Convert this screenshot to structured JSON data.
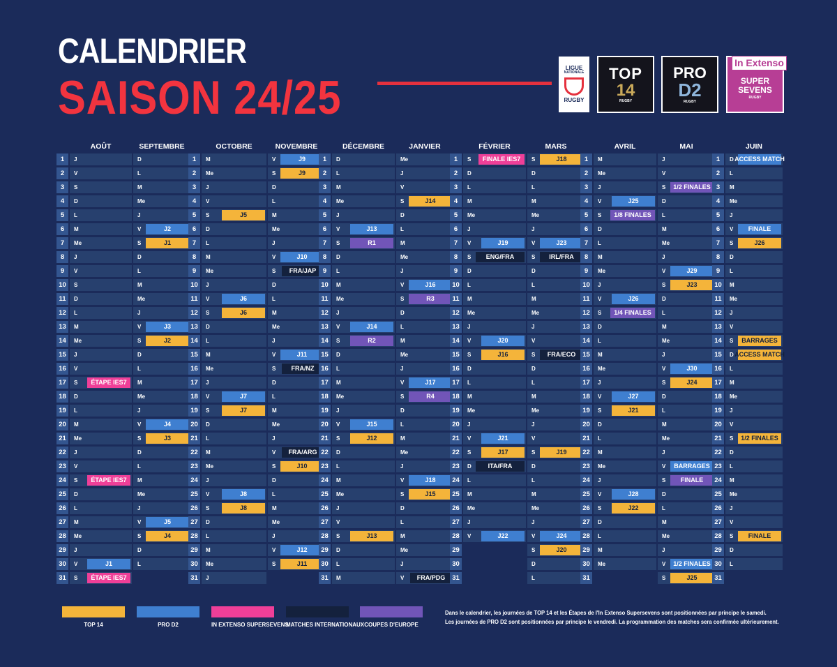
{
  "header": {
    "title_line1": "CALENDRIER",
    "title_line2": "SAISON 24/25"
  },
  "logos": {
    "lnr": {
      "line1": "LIGUE",
      "line2": "NATIONALE",
      "line3": "RUGBY"
    },
    "top14": {
      "line1": "TOP",
      "line2": "14",
      "line3": "RUGBY"
    },
    "prod2": {
      "line1": "PRO",
      "line2": "D2",
      "line3": "RUGBY"
    },
    "supersevens": {
      "line1": "In Extenso",
      "line2": "SUPER SEVENS",
      "line3": "RUGBY"
    }
  },
  "colors": {
    "background": "#1b2b5a",
    "title_red": "#f2343f",
    "top14": "#f4b43a",
    "prod2": "#3f7fd0",
    "supersevens": "#ef3f98",
    "international": "#14213d",
    "europe": "#7155b8",
    "cell": "#27406e",
    "daynum": "#33558f"
  },
  "blocks": [
    {
      "months": [
        {
          "name": "AOÛT",
          "days": [
            "J",
            "V",
            "S",
            "D",
            "L",
            "M",
            "Me",
            "J",
            "V",
            "S",
            "D",
            "L",
            "M",
            "Me",
            "J",
            "V",
            "S",
            "D",
            "L",
            "M",
            "Me",
            "J",
            "V",
            "S",
            "D",
            "L",
            "M",
            "Me",
            "J",
            "V",
            "S"
          ],
          "events": {
            "17": {
              "t": "ss",
              "l": "ÉTAPE IES7"
            },
            "24": {
              "t": "ss",
              "l": "ÉTAPE IES7"
            },
            "30": {
              "t": "prod2",
              "l": "J1"
            },
            "31": {
              "t": "ss",
              "l": "ÉTAPE IES7"
            }
          }
        },
        {
          "name": "SEPTEMBRE",
          "days": [
            "D",
            "L",
            "M",
            "Me",
            "J",
            "V",
            "S",
            "D",
            "L",
            "M",
            "Me",
            "J",
            "V",
            "S",
            "D",
            "L",
            "M",
            "Me",
            "J",
            "V",
            "S",
            "D",
            "L",
            "M",
            "Me",
            "J",
            "V",
            "S",
            "D",
            "L"
          ],
          "events": {
            "6": {
              "t": "prod2",
              "l": "J2"
            },
            "7": {
              "t": "top14",
              "l": "J1"
            },
            "13": {
              "t": "prod2",
              "l": "J3"
            },
            "14": {
              "t": "top14",
              "l": "J2"
            },
            "20": {
              "t": "prod2",
              "l": "J4"
            },
            "21": {
              "t": "top14",
              "l": "J3"
            },
            "27": {
              "t": "prod2",
              "l": "J5"
            },
            "28": {
              "t": "top14",
              "l": "J4"
            }
          }
        }
      ]
    },
    {
      "months": [
        {
          "name": "OCTOBRE",
          "days": [
            "M",
            "Me",
            "J",
            "V",
            "S",
            "D",
            "L",
            "M",
            "Me",
            "J",
            "V",
            "S",
            "D",
            "L",
            "M",
            "Me",
            "J",
            "V",
            "S",
            "D",
            "L",
            "M",
            "Me",
            "J",
            "V",
            "S",
            "D",
            "L",
            "M",
            "Me",
            "J"
          ],
          "events": {
            "5": {
              "t": "top14",
              "l": "J5"
            },
            "11": {
              "t": "prod2",
              "l": "J6"
            },
            "12": {
              "t": "top14",
              "l": "J6"
            },
            "18": {
              "t": "prod2",
              "l": "J7"
            },
            "19": {
              "t": "top14",
              "l": "J7"
            },
            "25": {
              "t": "prod2",
              "l": "J8"
            },
            "26": {
              "t": "top14",
              "l": "J8"
            }
          }
        },
        {
          "name": "NOVEMBRE",
          "days": [
            "V",
            "S",
            "D",
            "L",
            "M",
            "Me",
            "J",
            "V",
            "S",
            "D",
            "L",
            "M",
            "Me",
            "J",
            "V",
            "S",
            "D",
            "L",
            "M",
            "Me",
            "J",
            "V",
            "S",
            "D",
            "L",
            "M",
            "Me",
            "J",
            "V",
            "S"
          ],
          "events": {
            "1": {
              "t": "prod2",
              "l": "J9"
            },
            "2": {
              "t": "top14",
              "l": "J9"
            },
            "8": {
              "t": "prod2",
              "l": "J10"
            },
            "9": {
              "t": "intl",
              "l": "FRA/JAP"
            },
            "15": {
              "t": "prod2",
              "l": "J11"
            },
            "16": {
              "t": "intl",
              "l": "FRA/NZ"
            },
            "22": {
              "t": "intl",
              "l": "FRA/ARG"
            },
            "23": {
              "t": "top14",
              "l": "J10"
            },
            "29": {
              "t": "prod2",
              "l": "J12"
            },
            "30": {
              "t": "top14",
              "l": "J11"
            }
          }
        }
      ]
    },
    {
      "months": [
        {
          "name": "DÉCEMBRE",
          "days": [
            "D",
            "L",
            "M",
            "Me",
            "J",
            "V",
            "S",
            "D",
            "L",
            "M",
            "Me",
            "J",
            "V",
            "S",
            "D",
            "L",
            "M",
            "Me",
            "J",
            "V",
            "S",
            "D",
            "L",
            "M",
            "Me",
            "J",
            "V",
            "S",
            "D",
            "L",
            "M"
          ],
          "events": {
            "6": {
              "t": "prod2",
              "l": "J13"
            },
            "7": {
              "t": "eur",
              "l": "R1"
            },
            "13": {
              "t": "prod2",
              "l": "J14"
            },
            "14": {
              "t": "eur",
              "l": "R2"
            },
            "20": {
              "t": "prod2",
              "l": "J15"
            },
            "21": {
              "t": "top14",
              "l": "J12"
            },
            "28": {
              "t": "top14",
              "l": "J13"
            }
          }
        },
        {
          "name": "JANVIER",
          "days": [
            "Me",
            "J",
            "V",
            "S",
            "D",
            "L",
            "M",
            "Me",
            "J",
            "V",
            "S",
            "D",
            "L",
            "M",
            "Me",
            "J",
            "V",
            "S",
            "D",
            "L",
            "M",
            "Me",
            "J",
            "V",
            "S",
            "D",
            "L",
            "M",
            "Me",
            "J",
            "V"
          ],
          "events": {
            "4": {
              "t": "top14",
              "l": "J14"
            },
            "10": {
              "t": "prod2",
              "l": "J16"
            },
            "11": {
              "t": "eur",
              "l": "R3"
            },
            "17": {
              "t": "prod2",
              "l": "J17"
            },
            "18": {
              "t": "eur",
              "l": "R4"
            },
            "24": {
              "t": "prod2",
              "l": "J18"
            },
            "25": {
              "t": "top14",
              "l": "J15"
            },
            "31": {
              "t": "intl",
              "l": "FRA/PDG"
            }
          }
        }
      ]
    },
    {
      "months": [
        {
          "name": "FÉVRIER",
          "days": [
            "S",
            "D",
            "L",
            "M",
            "Me",
            "J",
            "V",
            "S",
            "D",
            "L",
            "M",
            "Me",
            "J",
            "V",
            "S",
            "D",
            "L",
            "M",
            "Me",
            "J",
            "V",
            "S",
            "D",
            "L",
            "M",
            "Me",
            "J",
            "V"
          ],
          "events": {
            "1": {
              "t": "ss",
              "l": "FINALE IES7"
            },
            "7": {
              "t": "prod2",
              "l": "J19"
            },
            "8": {
              "t": "intl",
              "l": "ENG/FRA"
            },
            "14": {
              "t": "prod2",
              "l": "J20"
            },
            "15": {
              "t": "top14",
              "l": "J16"
            },
            "21": {
              "t": "prod2",
              "l": "J21"
            },
            "22": {
              "t": "top14",
              "l": "J17"
            },
            "23": {
              "t": "intl",
              "l": "ITA/FRA"
            },
            "28": {
              "t": "prod2",
              "l": "J22"
            }
          }
        },
        {
          "name": "MARS",
          "days": [
            "S",
            "D",
            "L",
            "M",
            "Me",
            "J",
            "V",
            "S",
            "D",
            "L",
            "M",
            "Me",
            "J",
            "V",
            "S",
            "D",
            "L",
            "M",
            "Me",
            "J",
            "V",
            "S",
            "D",
            "L",
            "M",
            "Me",
            "J",
            "V",
            "S",
            "D",
            "L"
          ],
          "events": {
            "1": {
              "t": "top14",
              "l": "J18"
            },
            "7": {
              "t": "prod2",
              "l": "J23"
            },
            "8": {
              "t": "intl",
              "l": "IRL/FRA"
            },
            "15": {
              "t": "intl",
              "l": "FRA/ECO"
            },
            "22": {
              "t": "top14",
              "l": "J19"
            },
            "28": {
              "t": "prod2",
              "l": "J24"
            },
            "29": {
              "t": "top14",
              "l": "J20"
            }
          }
        }
      ]
    },
    {
      "months": [
        {
          "name": "AVRIL",
          "days": [
            "M",
            "Me",
            "J",
            "V",
            "S",
            "D",
            "L",
            "M",
            "Me",
            "J",
            "V",
            "S",
            "D",
            "L",
            "M",
            "Me",
            "J",
            "V",
            "S",
            "D",
            "L",
            "M",
            "Me",
            "J",
            "V",
            "S",
            "D",
            "L",
            "M",
            "Me"
          ],
          "events": {
            "4": {
              "t": "prod2",
              "l": "J25"
            },
            "5": {
              "t": "eur",
              "l": "1/8 FINALES"
            },
            "11": {
              "t": "prod2",
              "l": "J26"
            },
            "12": {
              "t": "eur",
              "l": "1/4 FINALES"
            },
            "18": {
              "t": "prod2",
              "l": "J27"
            },
            "19": {
              "t": "top14",
              "l": "J21"
            },
            "25": {
              "t": "prod2",
              "l": "J28"
            },
            "26": {
              "t": "top14",
              "l": "J22"
            }
          }
        },
        {
          "name": "MAI",
          "days": [
            "J",
            "V",
            "S",
            "D",
            "L",
            "M",
            "Me",
            "J",
            "V",
            "S",
            "D",
            "L",
            "M",
            "Me",
            "J",
            "V",
            "S",
            "D",
            "L",
            "M",
            "Me",
            "J",
            "V",
            "S",
            "D",
            "L",
            "M",
            "Me",
            "J",
            "V",
            "S"
          ],
          "events": {
            "3": {
              "t": "eur",
              "l": "1/2 FINALES"
            },
            "9": {
              "t": "prod2",
              "l": "J29"
            },
            "10": {
              "t": "top14",
              "l": "J23"
            },
            "16": {
              "t": "prod2",
              "l": "J30"
            },
            "17": {
              "t": "top14",
              "l": "J24"
            },
            "23": {
              "t": "prod2",
              "l": "BARRAGES"
            },
            "24": {
              "t": "eur",
              "l": "FINALE"
            },
            "30": {
              "t": "prod2",
              "l": "1/2 FINALES"
            },
            "31": {
              "t": "top14",
              "l": "J25"
            }
          }
        }
      ]
    },
    {
      "months": [
        {
          "name": "JUIN",
          "days": [
            "D",
            "L",
            "M",
            "Me",
            "J",
            "V",
            "S",
            "D",
            "L",
            "M",
            "Me",
            "J",
            "V",
            "S",
            "D",
            "L",
            "M",
            "Me",
            "J",
            "V",
            "S",
            "D",
            "L",
            "M",
            "Me",
            "J",
            "V",
            "S",
            "D",
            "L"
          ],
          "events": {
            "1": {
              "t": "prod2",
              "l": "ACCESS MATCH"
            },
            "6": {
              "t": "prod2",
              "l": "FINALE"
            },
            "7": {
              "t": "top14",
              "l": "J26"
            },
            "14": {
              "t": "top14",
              "l": "BARRAGES"
            },
            "15": {
              "t": "top14",
              "l": "ACCESS MATCH"
            },
            "21": {
              "t": "top14",
              "l": "1/2 FINALES"
            },
            "28": {
              "t": "top14",
              "l": "FINALE"
            }
          }
        }
      ]
    }
  ],
  "legend": [
    {
      "type": "top14",
      "label": "TOP 14"
    },
    {
      "type": "prod2",
      "label": "PRO D2"
    },
    {
      "type": "ss",
      "label": "IN EXTENSO SUPERSEVENS"
    },
    {
      "type": "intl",
      "label": "MATCHES INTERNATIONAUX"
    },
    {
      "type": "eur",
      "label": "COUPES D'EUROPE"
    }
  ],
  "note": {
    "line1": "Dans le calendrier, les journées de TOP 14 et les Étapes de l'In Extenso Supersevens sont positionnées par principe le samedi.",
    "line2": "Les journées de PRO D2 sont positionnées par principe le vendredi. La programmation des matches sera confirmée ultérieurement."
  }
}
